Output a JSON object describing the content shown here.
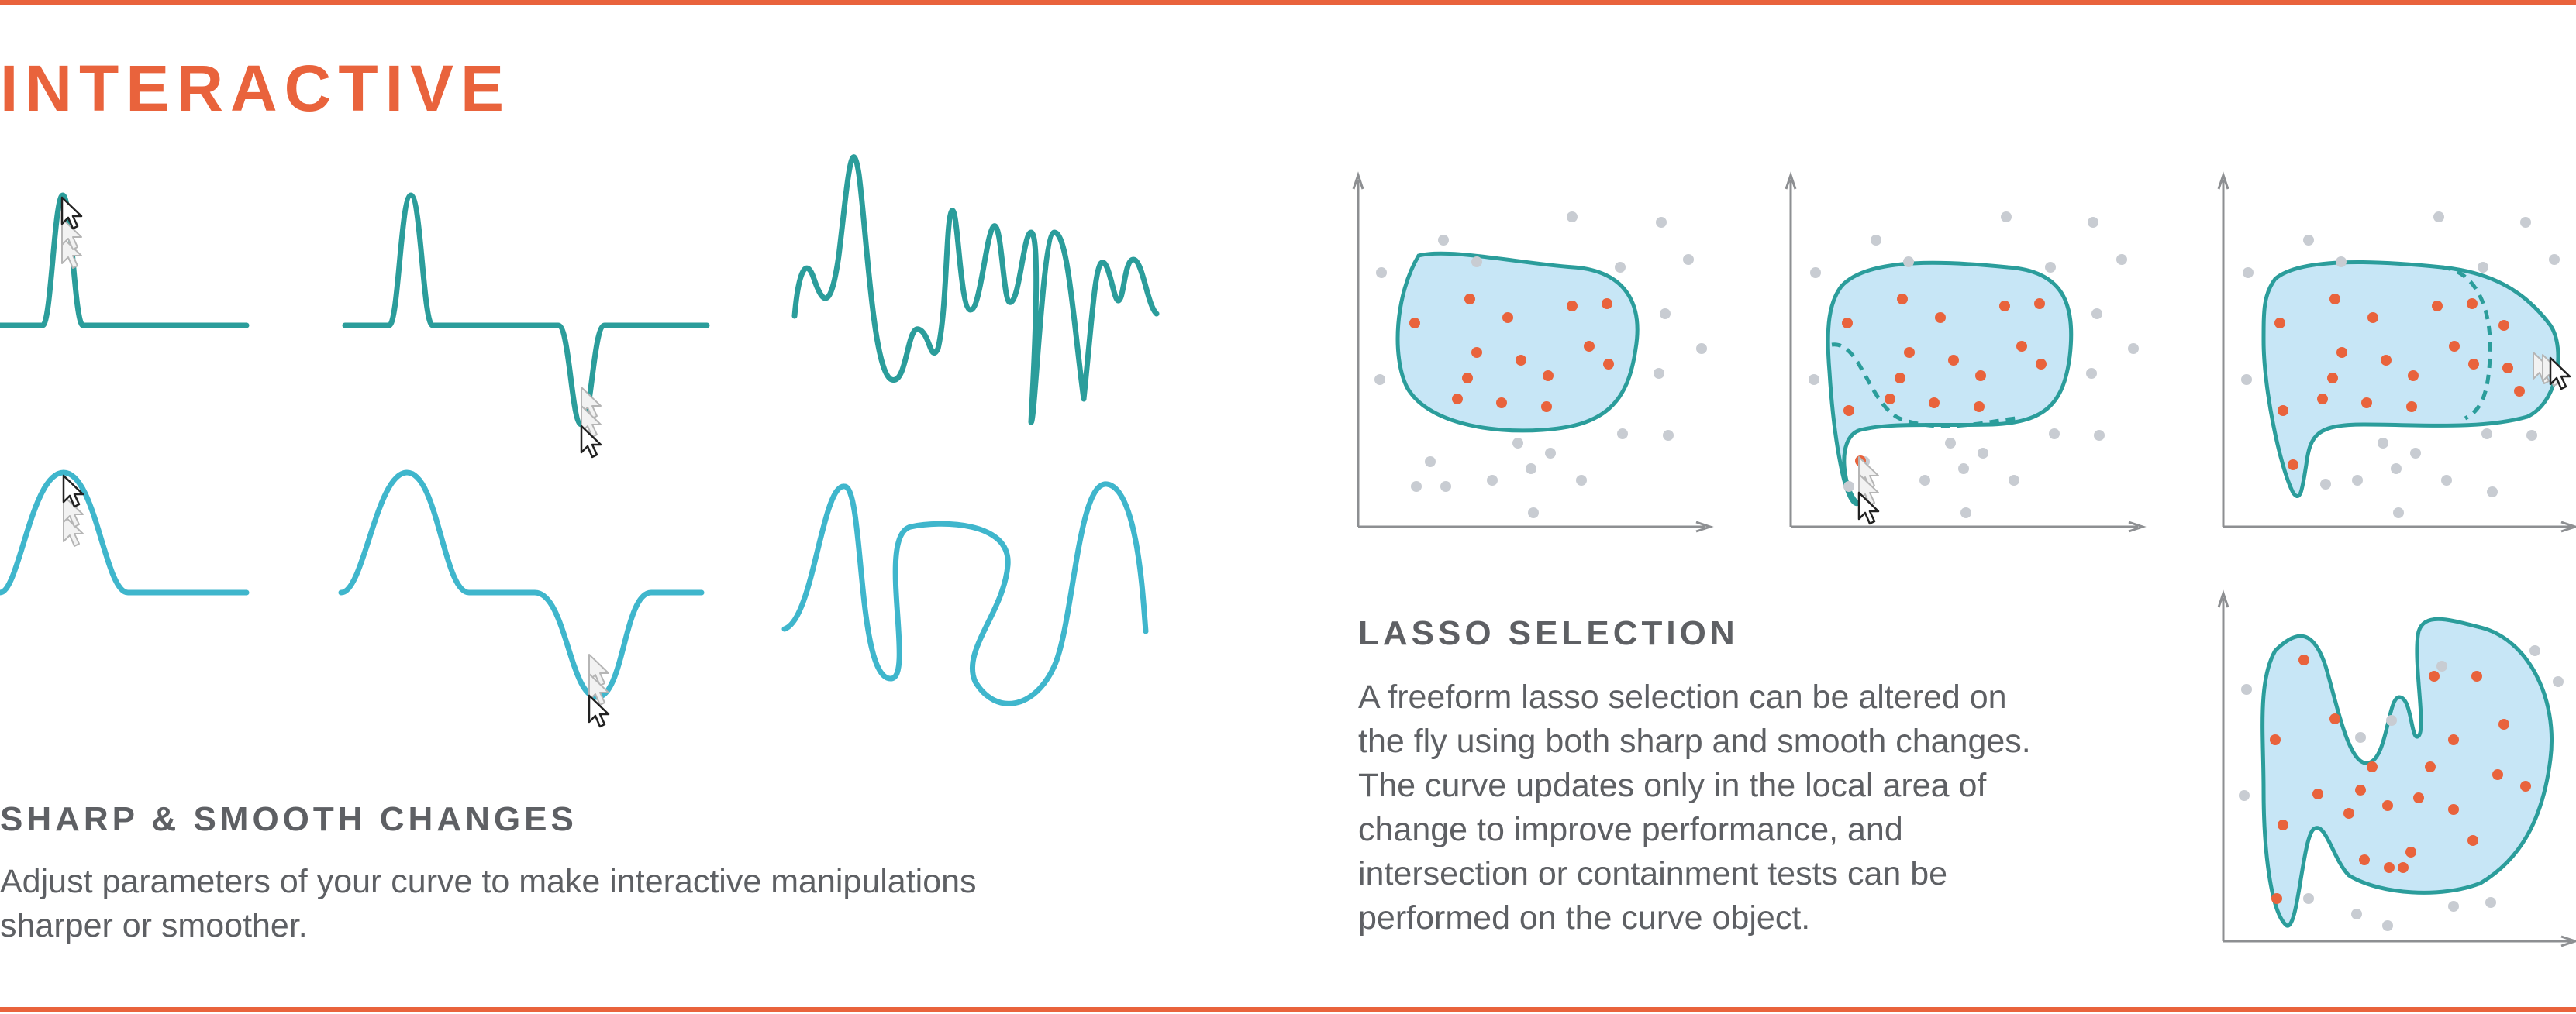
{
  "title": "INTERACTIVE",
  "sharp_smooth": {
    "heading": "SHARP & SMOOTH CHANGES",
    "body_line1": "Adjust parameters of your curve to make interactive manipulations",
    "body_line2": "sharper or smoother."
  },
  "lasso": {
    "heading": "LASSO SELECTION",
    "lines": [
      "A freeform lasso selection can be altered on",
      "the fly using both sharp and smooth changes.",
      "The curve updates only in the local area of",
      "change to improve performance, and",
      "intersection or containment tests can be",
      "performed on the curve object."
    ]
  },
  "colors": {
    "accent": "#e9633c",
    "sharp_curve": "#2b9d9b",
    "smooth_curve": "#3fb6cc",
    "lasso_fill": "#c7e6f6",
    "lasso_stroke": "#2b9d9b",
    "selected_point": "#e9633c",
    "unselected_point": "#c8ccd2",
    "axis": "#8d8f92",
    "text": "#5e6064"
  },
  "icons": [
    "mouse-pointer-icon"
  ]
}
